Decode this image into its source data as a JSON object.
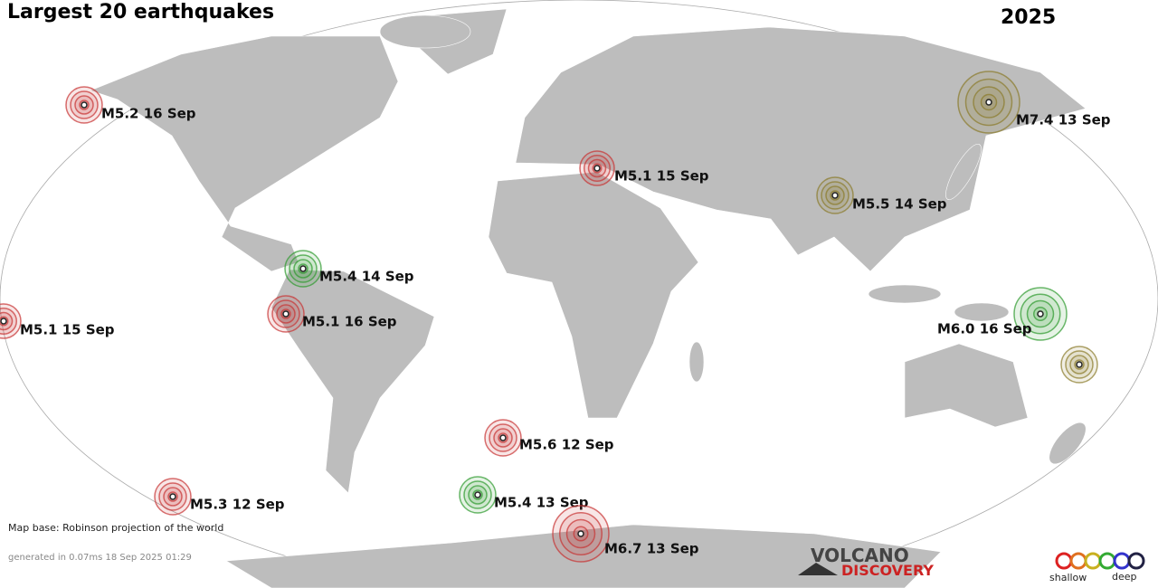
{
  "header": {
    "title": "Largest 20 earthquakes",
    "year": "2025"
  },
  "quakes": [
    {
      "label": "M5.2 16 Sep"
    },
    {
      "label": "M7.4 13 Sep"
    },
    {
      "label": "M5.1 15 Sep"
    },
    {
      "label": "M5.5 14 Sep"
    },
    {
      "label": "M5.4 14 Sep"
    },
    {
      "label": "M5.1 15 Sep"
    },
    {
      "label": "M5.1 16 Sep"
    },
    {
      "label": "M6.0 16 Sep"
    },
    {
      "label": "M5.6 12 Sep"
    },
    {
      "label": "M5.3 12 Sep"
    },
    {
      "label": "M5.4 13 Sep"
    },
    {
      "label": "M6.7 13 Sep"
    }
  ],
  "footer": {
    "map_base": "Map base: Robinson projection of the world",
    "generated": "generated in 0.07ms 18 Sep 2025 01:29"
  },
  "logo": {
    "line1": "VOLCANO",
    "line2": "DISCOVERY"
  },
  "legend": {
    "shallow": "shallow",
    "deep": "deep"
  }
}
